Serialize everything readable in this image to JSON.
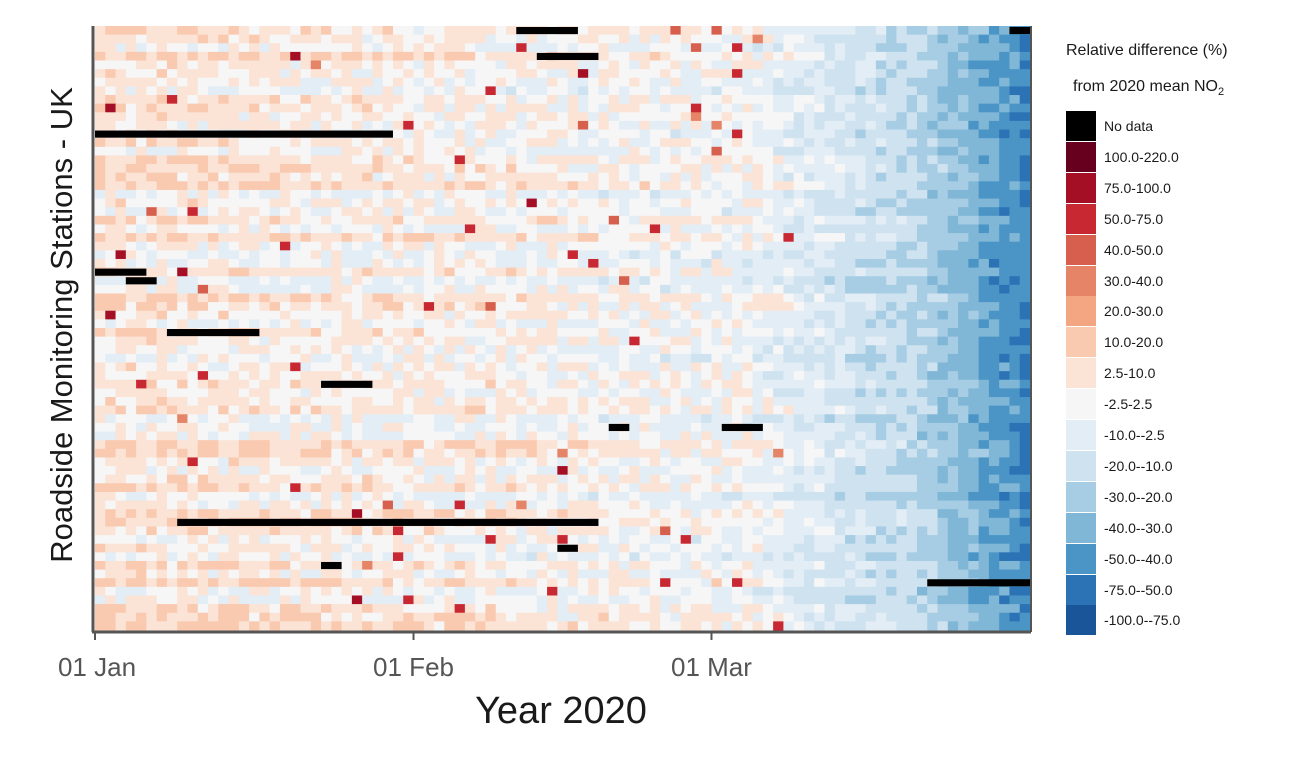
{
  "chart_data": {
    "type": "heatmap",
    "title": "",
    "xlabel": "Year 2020",
    "ylabel": "Roadside Monitoring Stations - UK",
    "x_ticks": [
      "01 Jan",
      "01 Feb",
      "01 Mar"
    ],
    "x_range": [
      "2020-01-01",
      "2020-03-31"
    ],
    "station_count": 70,
    "legend": {
      "title_line1": "Relative difference (%)",
      "title_line2_prefix": "from 2020 mean NO",
      "title_line2_sub": "2",
      "placement": "right",
      "bins": [
        {
          "label": "No data",
          "color": "#000000"
        },
        {
          "label": "100.0-220.0",
          "color": "#67001f"
        },
        {
          "label": "75.0-100.0",
          "color": "#a50f26"
        },
        {
          "label": "50.0-75.0",
          "color": "#c82832"
        },
        {
          "label": "40.0-50.0",
          "color": "#d6604d"
        },
        {
          "label": "30.0-40.0",
          "color": "#e58466"
        },
        {
          "label": "20.0-30.0",
          "color": "#f4a582"
        },
        {
          "label": "10.0-20.0",
          "color": "#f9c9b0"
        },
        {
          "label": "2.5-10.0",
          "color": "#fbe3d6"
        },
        {
          "label": "-2.5-2.5",
          "color": "#f6f6f6"
        },
        {
          "label": "-10.0--2.5",
          "color": "#e2edf5"
        },
        {
          "label": "-20.0--10.0",
          "color": "#cfe2ef"
        },
        {
          "label": "-30.0--20.0",
          "color": "#a6cde3"
        },
        {
          "label": "-40.0--30.0",
          "color": "#80b6d6"
        },
        {
          "label": "-50.0--40.0",
          "color": "#4a95c6"
        },
        {
          "label": "-75.0--50.0",
          "color": "#2c73b5"
        },
        {
          "label": "-100.0--75.0",
          "color": "#1a5599"
        }
      ]
    },
    "no_data_segments": [
      {
        "station": 1,
        "start": "2020-02-11",
        "end": "2020-02-16"
      },
      {
        "station": 4,
        "start": "2020-02-13",
        "end": "2020-02-18"
      },
      {
        "station": 13,
        "start": "2020-01-01",
        "end": "2020-01-29"
      },
      {
        "station": 29,
        "start": "2020-01-01",
        "end": "2020-01-05"
      },
      {
        "station": 30,
        "start": "2020-01-04",
        "end": "2020-01-06"
      },
      {
        "station": 36,
        "start": "2020-01-08",
        "end": "2020-01-16"
      },
      {
        "station": 42,
        "start": "2020-01-23",
        "end": "2020-01-27"
      },
      {
        "station": 47,
        "start": "2020-02-20",
        "end": "2020-02-21"
      },
      {
        "station": 47,
        "start": "2020-03-02",
        "end": "2020-03-05"
      },
      {
        "station": 58,
        "start": "2020-01-09",
        "end": "2020-02-18"
      },
      {
        "station": 61,
        "start": "2020-02-15",
        "end": "2020-02-16"
      },
      {
        "station": 63,
        "start": "2020-01-23",
        "end": "2020-01-24"
      },
      {
        "station": 65,
        "start": "2020-03-22",
        "end": "2020-03-31"
      },
      {
        "station": 1,
        "start": "2020-03-30",
        "end": "2020-03-31"
      }
    ],
    "notes": "Per-day per-station values are approximated: positive (red) early in the year trending to negative (blue) from mid-March."
  }
}
